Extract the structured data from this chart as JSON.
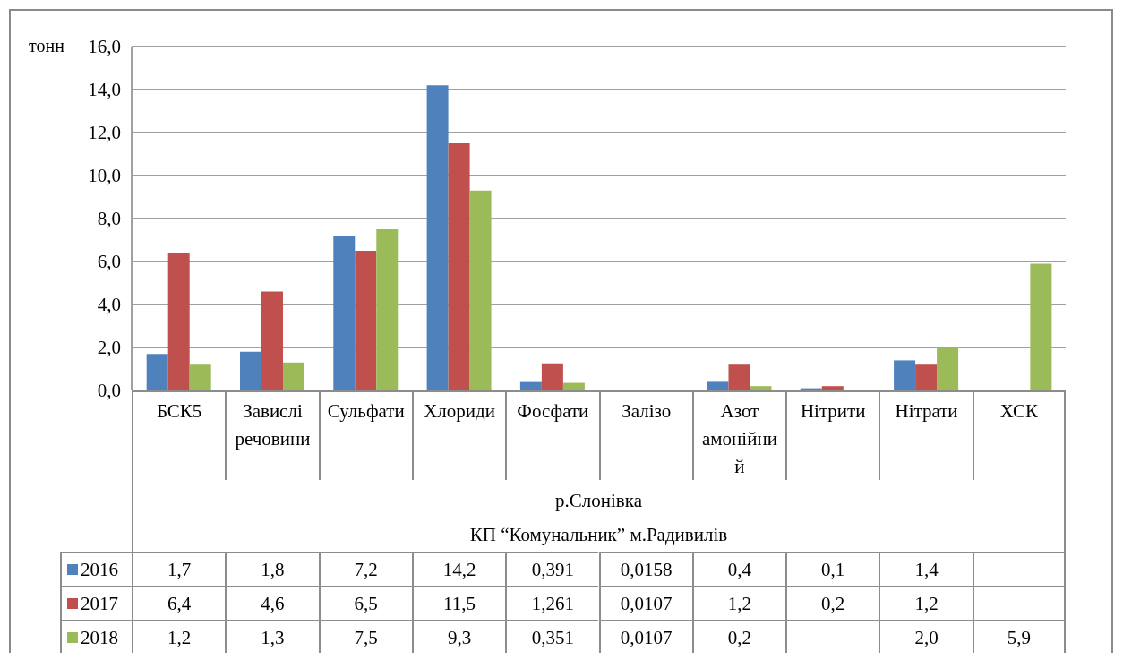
{
  "chart_data": {
    "type": "bar",
    "ylabel": "тонн",
    "categories": [
      "БСК5",
      "Завислі речовини",
      "Сульфати",
      "Хлориди",
      "Фосфати",
      "Залізо",
      "Азот амонійний",
      "Нітрити",
      "Нітрати",
      "ХСК"
    ],
    "series": [
      {
        "name": "2016",
        "color": "#4f81bd",
        "values": [
          1.7,
          1.8,
          7.2,
          14.2,
          0.391,
          0.0158,
          0.4,
          0.1,
          1.4,
          null
        ],
        "value_labels": [
          "1,7",
          "1,8",
          "7,2",
          "14,2",
          "0,391",
          "0,0158",
          "0,4",
          "0,1",
          "1,4",
          null
        ]
      },
      {
        "name": "2017",
        "color": "#c0504d",
        "values": [
          6.4,
          4.6,
          6.5,
          11.5,
          1.261,
          0.0107,
          1.2,
          0.2,
          1.2,
          null
        ],
        "value_labels": [
          "6,4",
          "4,6",
          "6,5",
          "11,5",
          "1,261",
          "0,0107",
          "1,2",
          "0,2",
          "1,2",
          null
        ]
      },
      {
        "name": "2018",
        "color": "#9bbb59",
        "values": [
          1.2,
          1.3,
          7.5,
          9.3,
          0.351,
          0.0107,
          0.2,
          null,
          2.0,
          5.9
        ],
        "value_labels": [
          "1,2",
          "1,3",
          "7,5",
          "9,3",
          "0,351",
          "0,0107",
          "0,2",
          null,
          "2,0",
          "5,9"
        ]
      }
    ],
    "ylim": [
      0,
      16
    ],
    "yticks": [
      {
        "value": 0,
        "label": "0,0"
      },
      {
        "value": 2,
        "label": "2,0"
      },
      {
        "value": 4,
        "label": "4,0"
      },
      {
        "value": 6,
        "label": "6,0"
      },
      {
        "value": 8,
        "label": "8,0"
      },
      {
        "value": 10,
        "label": "10,0"
      },
      {
        "value": 12,
        "label": "12,0"
      },
      {
        "value": 14,
        "label": "14,0"
      },
      {
        "value": 16,
        "label": "16,0"
      }
    ],
    "annotations": [
      "р.Слонівка",
      "КП “Комунальник” м.Радивилів"
    ],
    "grid": "y",
    "legend": "bottom"
  }
}
